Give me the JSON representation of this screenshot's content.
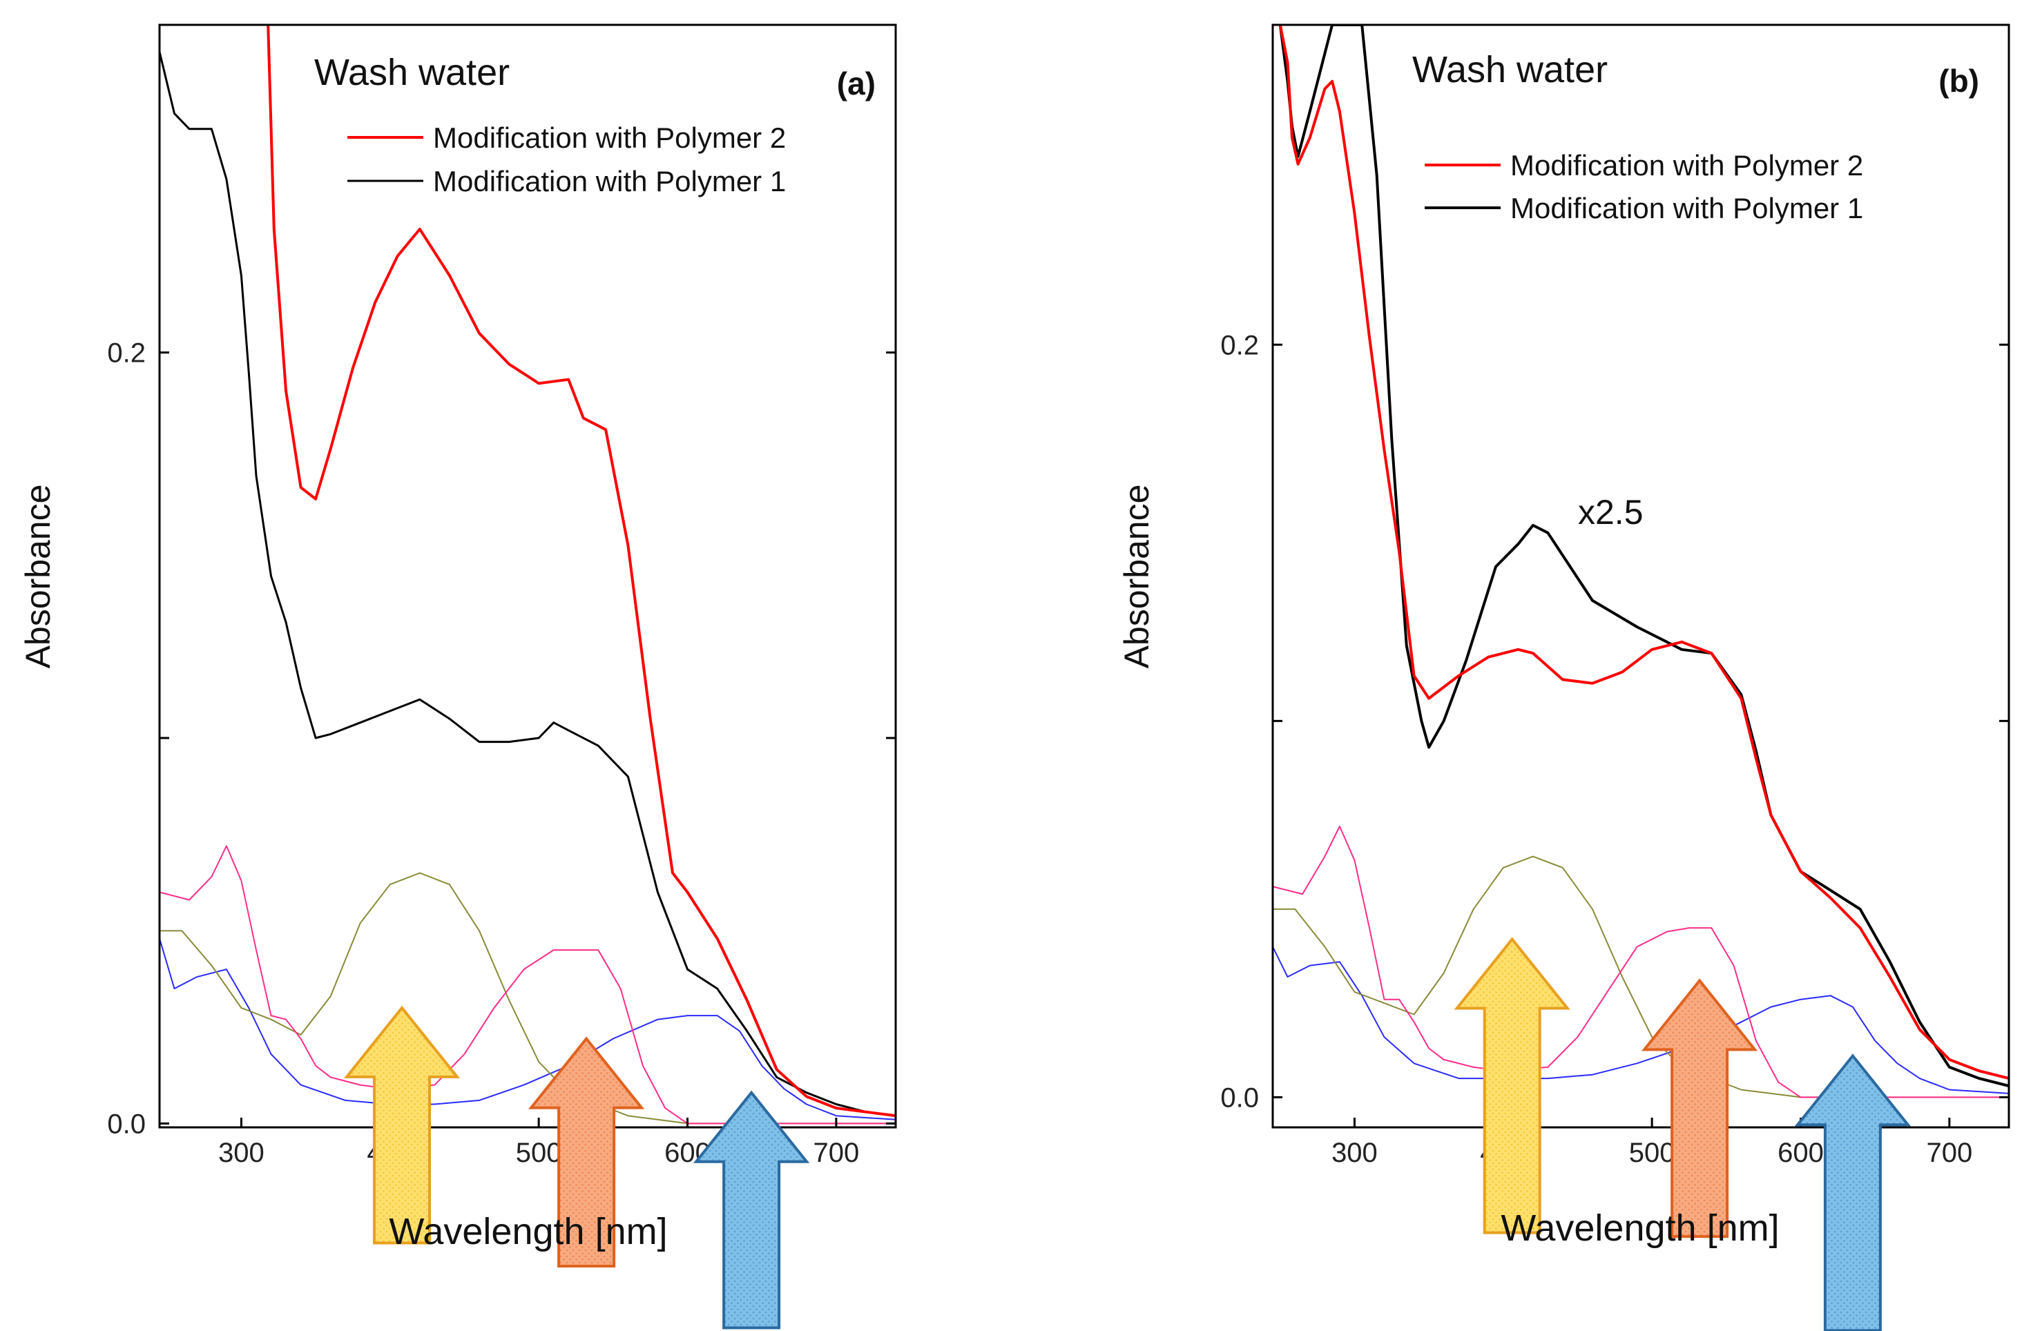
{
  "colors": {
    "polymer2": "#ff0000",
    "polymer1": "#000000",
    "ref_magenta": "#ff2d8a",
    "ref_olive": "#8a8a3a",
    "ref_blue": "#2a2aff",
    "arrow_yellow_fill": "#ffe06e",
    "arrow_yellow_stroke": "#e8a020",
    "arrow_orange_fill": "#f8aa80",
    "arrow_orange_stroke": "#e0621e",
    "arrow_blue_fill": "#80c0e8",
    "arrow_blue_stroke": "#2a6aa0"
  },
  "chart_data": [
    {
      "type": "line",
      "panel": "(a)",
      "title": "Wash water",
      "xlabel": "Wavelength [nm]",
      "ylabel": "Absorbance",
      "xlim": [
        245,
        740
      ],
      "ylim": [
        -0.001,
        0.285
      ],
      "xticks": [
        300,
        400,
        500,
        600,
        700
      ],
      "xtick_labels": [
        "300",
        "400",
        "500",
        "600",
        "700"
      ],
      "yticks": [
        0.0,
        0.1,
        0.2
      ],
      "ytick_labels": [
        "0.0",
        "",
        "0.2"
      ],
      "legend": [
        "Modification with Polymer 2",
        "Modification with Polymer 1"
      ],
      "series": [
        {
          "name": "Modification with Polymer 2",
          "color_key": "polymer2",
          "width": 4,
          "x": [
            318,
            322,
            330,
            340,
            350,
            360,
            375,
            390,
            405,
            420,
            440,
            460,
            480,
            500,
            520,
            530,
            545,
            560,
            575,
            590,
            600,
            620,
            640,
            660,
            680,
            700,
            720,
            740
          ],
          "y": [
            0.285,
            0.232,
            0.19,
            0.165,
            0.162,
            0.175,
            0.196,
            0.213,
            0.225,
            0.232,
            0.22,
            0.205,
            0.197,
            0.192,
            0.193,
            0.183,
            0.18,
            0.15,
            0.105,
            0.065,
            0.06,
            0.048,
            0.032,
            0.014,
            0.007,
            0.004,
            0.003,
            0.002
          ]
        },
        {
          "name": "Modification with Polymer 1",
          "color_key": "polymer1",
          "width": 3,
          "x": [
            245,
            255,
            265,
            280,
            290,
            300,
            305,
            310,
            320,
            330,
            340,
            350,
            360,
            380,
            400,
            420,
            440,
            460,
            480,
            500,
            510,
            520,
            540,
            560,
            580,
            600,
            620,
            640,
            660,
            680,
            700,
            720,
            740
          ],
          "y": [
            0.278,
            0.262,
            0.258,
            0.258,
            0.245,
            0.22,
            0.195,
            0.168,
            0.142,
            0.13,
            0.113,
            0.1,
            0.101,
            0.104,
            0.107,
            0.11,
            0.105,
            0.099,
            0.099,
            0.1,
            0.104,
            0.102,
            0.098,
            0.09,
            0.06,
            0.04,
            0.035,
            0.024,
            0.012,
            0.008,
            0.005,
            0.003,
            0.002
          ]
        },
        {
          "name": "ref-magenta",
          "color_key": "ref_magenta",
          "width": 2,
          "x": [
            245,
            265,
            280,
            290,
            300,
            310,
            320,
            330,
            340,
            350,
            360,
            380,
            400,
            430,
            450,
            470,
            490,
            510,
            525,
            540,
            555,
            570,
            585,
            600,
            640,
            740
          ],
          "y": [
            0.06,
            0.058,
            0.064,
            0.072,
            0.063,
            0.045,
            0.028,
            0.027,
            0.022,
            0.015,
            0.012,
            0.01,
            0.009,
            0.01,
            0.018,
            0.03,
            0.04,
            0.045,
            0.045,
            0.045,
            0.035,
            0.015,
            0.004,
            0.0,
            0.0,
            0.0
          ]
        },
        {
          "name": "ref-olive",
          "color_key": "ref_olive",
          "width": 2,
          "x": [
            245,
            260,
            280,
            300,
            320,
            340,
            360,
            380,
            400,
            420,
            440,
            460,
            480,
            500,
            520,
            540,
            560,
            580,
            600,
            640,
            740
          ],
          "y": [
            0.05,
            0.05,
            0.041,
            0.03,
            0.027,
            0.023,
            0.033,
            0.052,
            0.062,
            0.065,
            0.062,
            0.05,
            0.032,
            0.016,
            0.008,
            0.005,
            0.002,
            0.001,
            0.0,
            0.0,
            0.0
          ]
        },
        {
          "name": "ref-blue",
          "color_key": "ref_blue",
          "width": 2,
          "x": [
            245,
            255,
            270,
            290,
            305,
            320,
            340,
            370,
            400,
            430,
            460,
            490,
            520,
            550,
            580,
            600,
            620,
            635,
            650,
            665,
            680,
            700,
            740
          ],
          "y": [
            0.048,
            0.035,
            0.038,
            0.04,
            0.03,
            0.018,
            0.01,
            0.006,
            0.005,
            0.005,
            0.006,
            0.01,
            0.015,
            0.022,
            0.027,
            0.028,
            0.028,
            0.024,
            0.015,
            0.009,
            0.005,
            0.002,
            0.001
          ]
        }
      ],
      "arrows": [
        {
          "color": "yellow",
          "x": 408,
          "tip_y": 0.03,
          "base_y": -0.031
        },
        {
          "color": "orange",
          "x": 532,
          "tip_y": 0.022,
          "base_y": -0.037
        },
        {
          "color": "blue",
          "x": 643,
          "tip_y": 0.008,
          "base_y": -0.053
        }
      ]
    },
    {
      "type": "line",
      "panel": "(b)",
      "title": "Wash water",
      "xlabel": "Wavelength [nm]",
      "ylabel": "Absorbance",
      "annotation": "x2.5",
      "xlim": [
        245,
        740
      ],
      "ylim": [
        -0.008,
        0.285
      ],
      "xticks": [
        300,
        400,
        500,
        600,
        700
      ],
      "xtick_labels": [
        "300",
        "400",
        "500",
        "600",
        "700"
      ],
      "yticks": [
        0.0,
        0.1,
        0.2
      ],
      "ytick_labels": [
        "0.0",
        "",
        "0.2"
      ],
      "legend": [
        "Modification with Polymer 2",
        "Modification with Polymer 1"
      ],
      "series": [
        {
          "name": "Modification with Polymer 2",
          "color_key": "polymer2",
          "width": 4,
          "x": [
            250,
            255,
            258,
            262,
            270,
            280,
            285,
            290,
            300,
            310,
            320,
            330,
            340,
            350,
            370,
            390,
            410,
            420,
            440,
            460,
            480,
            500,
            520,
            540,
            560,
            570,
            580,
            600,
            620,
            640,
            660,
            680,
            700,
            720,
            740
          ],
          "y": [
            0.285,
            0.275,
            0.255,
            0.248,
            0.255,
            0.268,
            0.27,
            0.262,
            0.235,
            0.202,
            0.172,
            0.145,
            0.112,
            0.106,
            0.112,
            0.117,
            0.119,
            0.118,
            0.111,
            0.11,
            0.113,
            0.119,
            0.121,
            0.118,
            0.106,
            0.09,
            0.075,
            0.06,
            0.053,
            0.045,
            0.032,
            0.018,
            0.01,
            0.007,
            0.005
          ]
        },
        {
          "name": "Modification with Polymer 1",
          "color_key": "polymer1",
          "width": 4,
          "x": [
            250,
            255,
            258,
            262,
            270,
            285,
            305,
            315,
            325,
            335,
            345,
            350,
            360,
            375,
            395,
            410,
            420,
            430,
            445,
            460,
            490,
            510,
            520,
            540,
            560,
            570,
            580,
            600,
            620,
            640,
            660,
            680,
            700,
            720,
            740
          ],
          "y": [
            0.285,
            0.27,
            0.258,
            0.25,
            0.262,
            0.285,
            0.285,
            0.245,
            0.175,
            0.12,
            0.1,
            0.093,
            0.1,
            0.116,
            0.141,
            0.147,
            0.152,
            0.15,
            0.141,
            0.132,
            0.125,
            0.121,
            0.119,
            0.118,
            0.107,
            0.092,
            0.075,
            0.06,
            0.055,
            0.05,
            0.036,
            0.02,
            0.008,
            0.005,
            0.003
          ]
        },
        {
          "name": "ref-magenta",
          "color_key": "ref_magenta",
          "width": 2,
          "x": [
            245,
            265,
            280,
            290,
            300,
            310,
            320,
            330,
            340,
            350,
            360,
            380,
            400,
            430,
            450,
            470,
            490,
            510,
            525,
            540,
            555,
            570,
            585,
            600,
            640,
            740
          ],
          "y": [
            0.056,
            0.054,
            0.064,
            0.072,
            0.063,
            0.045,
            0.026,
            0.026,
            0.02,
            0.013,
            0.01,
            0.008,
            0.007,
            0.008,
            0.016,
            0.028,
            0.04,
            0.044,
            0.045,
            0.045,
            0.035,
            0.015,
            0.004,
            0.0,
            0.0,
            0.0
          ]
        },
        {
          "name": "ref-olive",
          "color_key": "ref_olive",
          "width": 2,
          "x": [
            245,
            260,
            280,
            300,
            320,
            340,
            360,
            380,
            400,
            420,
            440,
            460,
            480,
            500,
            520,
            540,
            560,
            580,
            600,
            640,
            740
          ],
          "y": [
            0.05,
            0.05,
            0.04,
            0.028,
            0.025,
            0.022,
            0.033,
            0.05,
            0.061,
            0.064,
            0.061,
            0.05,
            0.032,
            0.016,
            0.008,
            0.005,
            0.002,
            0.001,
            0.0,
            0.0,
            0.0
          ]
        },
        {
          "name": "ref-blue",
          "color_key": "ref_blue",
          "width": 2,
          "x": [
            245,
            255,
            270,
            290,
            305,
            320,
            340,
            370,
            400,
            430,
            460,
            490,
            520,
            550,
            580,
            600,
            620,
            635,
            650,
            665,
            680,
            700,
            740
          ],
          "y": [
            0.04,
            0.032,
            0.035,
            0.036,
            0.027,
            0.016,
            0.009,
            0.005,
            0.005,
            0.005,
            0.006,
            0.009,
            0.013,
            0.018,
            0.024,
            0.026,
            0.027,
            0.024,
            0.015,
            0.009,
            0.005,
            0.002,
            0.001
          ]
        }
      ],
      "arrows": [
        {
          "color": "yellow",
          "x": 406,
          "tip_y": 0.042,
          "base_y": -0.036
        },
        {
          "color": "orange",
          "x": 532,
          "tip_y": 0.031,
          "base_y": -0.037
        },
        {
          "color": "blue",
          "x": 635,
          "tip_y": 0.011,
          "base_y": -0.062
        }
      ]
    }
  ]
}
